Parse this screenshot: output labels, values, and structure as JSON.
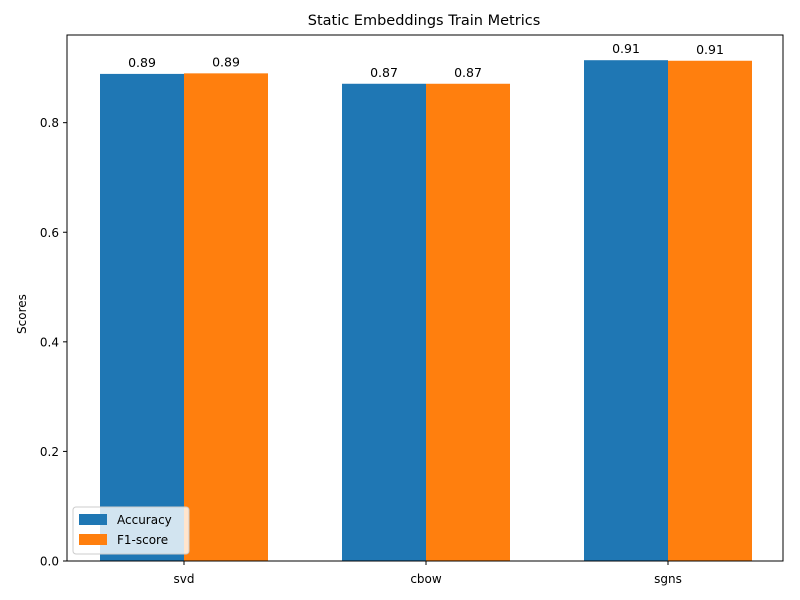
{
  "chart_data": {
    "type": "bar",
    "title": "Static Embeddings Train Metrics",
    "xlabel": "",
    "ylabel": "Scores",
    "categories": [
      "svd",
      "cbow",
      "sgns"
    ],
    "series": [
      {
        "name": "Accuracy",
        "color": "#1f77b4",
        "values": [
          0.889,
          0.871,
          0.914
        ],
        "labels": [
          "0.89",
          "0.87",
          "0.91"
        ]
      },
      {
        "name": "F1-score",
        "color": "#ff7f0e",
        "values": [
          0.89,
          0.871,
          0.913
        ],
        "labels": [
          "0.89",
          "0.87",
          "0.91"
        ]
      }
    ],
    "ylim": [
      0,
      0.96
    ],
    "yticks": [
      0.0,
      0.2,
      0.4,
      0.6,
      0.8
    ],
    "ytick_labels": [
      "0.0",
      "0.2",
      "0.4",
      "0.6",
      "0.8"
    ],
    "grid": false,
    "legend_position": "lower-left"
  }
}
